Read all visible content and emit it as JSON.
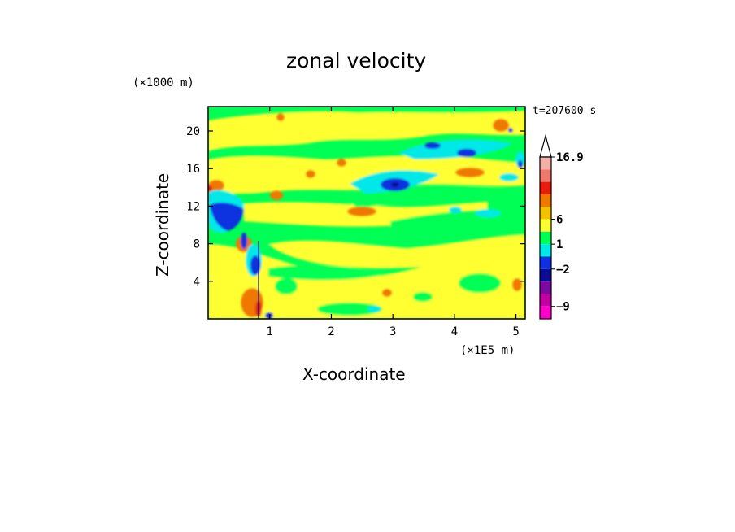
{
  "figure": {
    "title": "zonal velocity",
    "timestamp": "t=207600 s",
    "x_unit": "(×1E5 m)",
    "y_unit": "(×1000 m)"
  },
  "chart_data": {
    "type": "heatmap",
    "title": "zonal velocity",
    "xlabel": "X-coordinate",
    "ylabel": "Z-coordinate",
    "xlim": [
      0,
      5.15
    ],
    "ylim": [
      0,
      22.6
    ],
    "x_ticks": [
      "1",
      "2",
      "3",
      "4",
      "5"
    ],
    "x_tick_values": [
      1,
      2,
      3,
      4,
      5
    ],
    "y_ticks": [
      "4",
      "8",
      "12",
      "16",
      "20"
    ],
    "y_tick_values": [
      4,
      8,
      12,
      16,
      20
    ],
    "grid": false,
    "colorbar": {
      "position": "right",
      "max_label": "16.9",
      "labels": [
        "16.9",
        "6",
        "1",
        "-2",
        "-9"
      ],
      "colors": [
        "#f2b0a8",
        "#ee7a6e",
        "#e81c0c",
        "#f07800",
        "#f4c000",
        "#ffff33",
        "#00ff55",
        "#00e8e8",
        "#1030e0",
        "#0c0c90",
        "#7a0aa0",
        "#c000a0",
        "#ff00c8"
      ]
    }
  }
}
